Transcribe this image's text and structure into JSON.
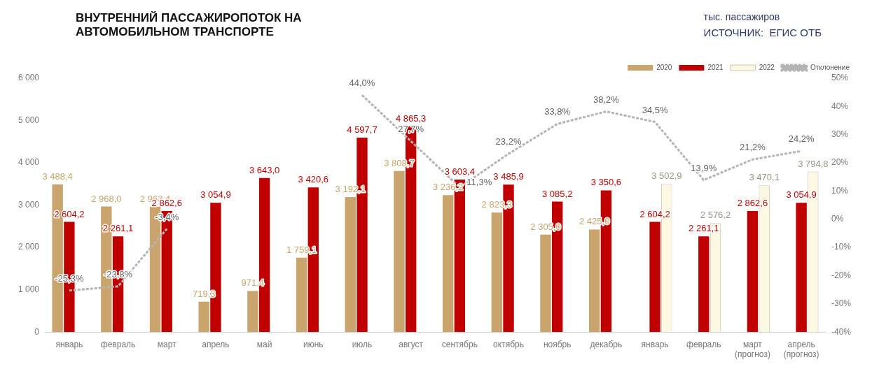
{
  "chart_data": {
    "type": "bar",
    "title": "ВНУТРЕННИЙ ПАССАЖИРОПОТОК НА АВТОМОБИЛЬНОМ ТРАНСПОРТЕ",
    "subtitle": "тыс. пассажиров",
    "annotations": [
      "ИСТОЧНИК:  ЕГИС ОТБ"
    ],
    "categories": [
      "январь",
      "февраль",
      "март",
      "апрель",
      "май",
      "июнь",
      "июль",
      "август",
      "сентябрь",
      "октябрь",
      "ноябрь",
      "декабрь",
      "январь",
      "февраль",
      "март (прогноз)",
      "апрель (прогноз)"
    ],
    "series": [
      {
        "name": "2020",
        "color": "#c9a46c",
        "values": [
          3488.4,
          2968.0,
          2963.4,
          719.3,
          971.4,
          1759.1,
          3192.1,
          3808.7,
          3236.2,
          2823.3,
          2305.0,
          2425.0,
          null,
          null,
          null,
          null
        ],
        "value_labels": [
          "3 488,4",
          "2 968,0",
          "2 963,4",
          "719,3",
          "971,4",
          "1 759,1",
          "3 192,1",
          "3 808,7",
          "3 236,2",
          "2 823,3",
          "2 305,0",
          "2 425,0",
          null,
          null,
          null,
          null
        ]
      },
      {
        "name": "2021",
        "color": "#c00000",
        "values": [
          2604.2,
          2261.1,
          2862.6,
          3054.9,
          3643.0,
          3420.6,
          4597.7,
          4865.3,
          3603.4,
          3485.9,
          3085.2,
          3350.6,
          2604.2,
          2261.1,
          2862.6,
          3054.9
        ],
        "value_labels": [
          "2 604,2",
          "2 261,1",
          "2 862,6",
          "3 054,9",
          "3 643,0",
          "3 420,6",
          "4 597,7",
          "4 865,3",
          "3 603,4",
          "3 485,9",
          "3 085,2",
          "3 350,6",
          "2 604,2",
          "2 261,1",
          "2 862,6",
          "3 054,9"
        ]
      },
      {
        "name": "2022",
        "color": "#fdf8e2",
        "values": [
          null,
          null,
          null,
          null,
          null,
          null,
          null,
          null,
          null,
          null,
          null,
          null,
          3502.9,
          2576.2,
          3470.1,
          3794.8
        ],
        "value_labels": [
          null,
          null,
          null,
          null,
          null,
          null,
          null,
          null,
          null,
          null,
          null,
          null,
          "3 502,9",
          "2 576,2",
          "3 470,1",
          "3 794,8"
        ]
      },
      {
        "name": "Отклонение",
        "type": "line",
        "axis": "y2",
        "color": "#b4b4b4",
        "line_style": "dashed",
        "marker": "none",
        "values": [
          -25.3,
          -23.8,
          -3.4,
          null,
          null,
          null,
          44.0,
          27.7,
          11.3,
          23.2,
          33.8,
          38.2,
          34.5,
          13.9,
          21.2,
          24.2
        ],
        "value_labels": [
          "-25,3%",
          "-23,8%",
          "-3,4%",
          null,
          null,
          null,
          "44,0%",
          "27,7%",
          "11,3%",
          "23,2%",
          "33,8%",
          "38,2%",
          "34,5%",
          "13,9%",
          "21,2%",
          "24,2%"
        ]
      }
    ],
    "ylim": [
      0,
      6000
    ],
    "yticks": [
      0,
      {
        "value": 1000,
        "label": "1 000"
      },
      {
        "value": 2000,
        "label": "2 000"
      },
      {
        "value": 3000,
        "label": "3 000"
      },
      {
        "value": 4000,
        "label": "4 000"
      },
      {
        "value": 5000,
        "label": "5 000"
      },
      {
        "value": 6000,
        "label": "6 000"
      }
    ],
    "y2lim": [
      -40,
      50
    ],
    "y2ticks": [
      {
        "value": -40,
        "label": "-40%"
      },
      {
        "value": -30,
        "label": "-30%"
      },
      {
        "value": -20,
        "label": "-20%"
      },
      {
        "value": -10,
        "label": "-10%"
      },
      {
        "value": 0,
        "label": "0%"
      },
      {
        "value": 10,
        "label": "10%"
      },
      {
        "value": 20,
        "label": "20%"
      },
      {
        "value": 30,
        "label": "30%"
      },
      {
        "value": 40,
        "label": "40%"
      },
      {
        "value": 50,
        "label": "50%"
      }
    ],
    "grid": false,
    "legend": "top right"
  }
}
